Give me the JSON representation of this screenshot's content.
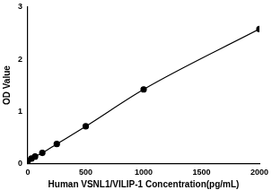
{
  "chart_data": {
    "type": "scatter",
    "x_label": "Human VSNL1/VILIP-1 Concentration(pg/mL)",
    "y_label": "OD Value",
    "x": [
      0,
      31.25,
      62.5,
      125,
      250,
      500,
      1000,
      2000
    ],
    "values": [
      0.05,
      0.09,
      0.13,
      0.2,
      0.37,
      0.71,
      1.42,
      2.58
    ],
    "color": "#000000",
    "marker": "circle",
    "line_style": "solid",
    "xlim": [
      0,
      2000
    ],
    "xticks": [
      0,
      500,
      1000,
      1500,
      2000
    ],
    "ylim": [
      0,
      3
    ],
    "yticks": [
      0,
      1,
      2,
      3
    ],
    "grid": false
  }
}
